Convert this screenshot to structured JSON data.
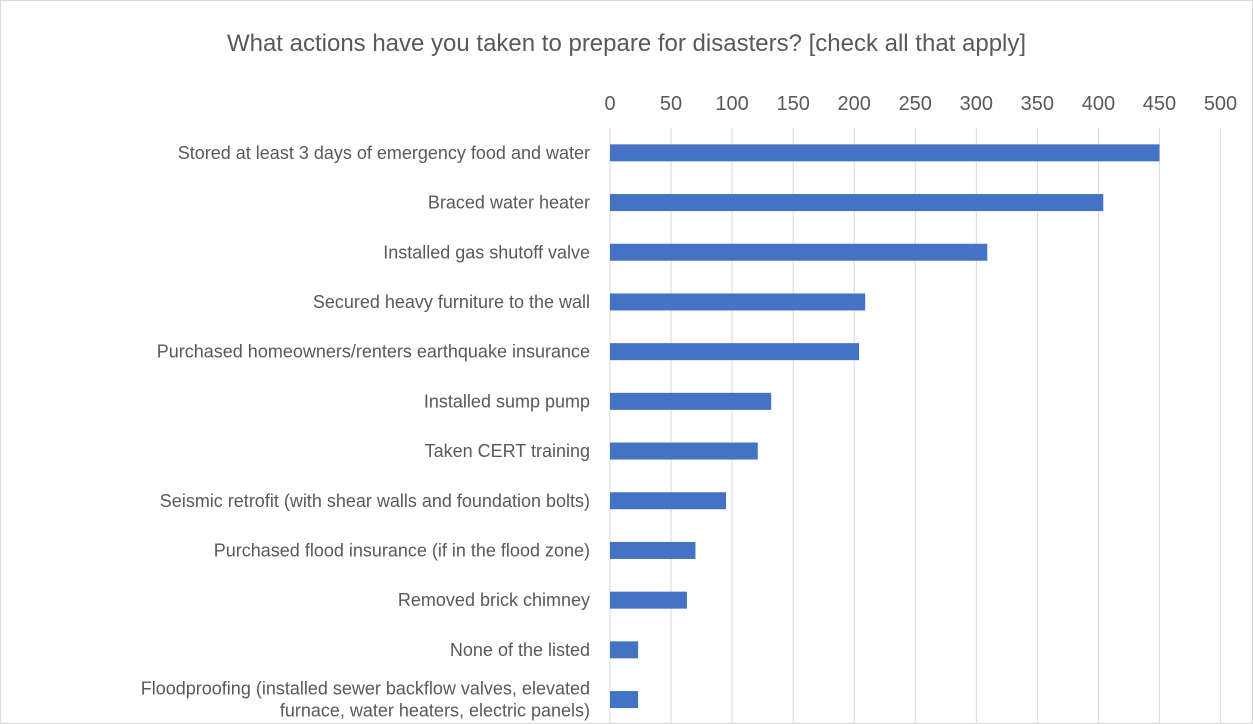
{
  "chart_data": {
    "type": "bar",
    "orientation": "horizontal",
    "title": "What actions have you taken to prepare for disasters? [check all that apply]",
    "xlabel": "",
    "ylabel": "",
    "xlim": [
      0,
      500
    ],
    "x_ticks": [
      0,
      50,
      100,
      150,
      200,
      250,
      300,
      350,
      400,
      450,
      500
    ],
    "x_axis_position": "top",
    "grid": true,
    "legend": "none",
    "bar_color": "#4472c4",
    "categories": [
      [
        "Stored at least 3 days of emergency food and water"
      ],
      [
        "Braced water heater"
      ],
      [
        "Installed gas shutoff valve"
      ],
      [
        "Secured heavy furniture to the wall"
      ],
      [
        "Purchased homeowners/renters earthquake insurance"
      ],
      [
        "Installed sump pump"
      ],
      [
        "Taken CERT training"
      ],
      [
        "Seismic retrofit (with shear walls and foundation bolts)"
      ],
      [
        "Purchased flood insurance (if in the flood zone)"
      ],
      [
        "Removed brick chimney"
      ],
      [
        "None of the listed"
      ],
      [
        "Floodproofing (installed sewer backflow valves, elevated",
        "furnace, water heaters, electric panels)"
      ]
    ],
    "values": [
      450,
      404,
      309,
      209,
      204,
      132,
      121,
      95,
      70,
      63,
      23,
      23
    ]
  }
}
